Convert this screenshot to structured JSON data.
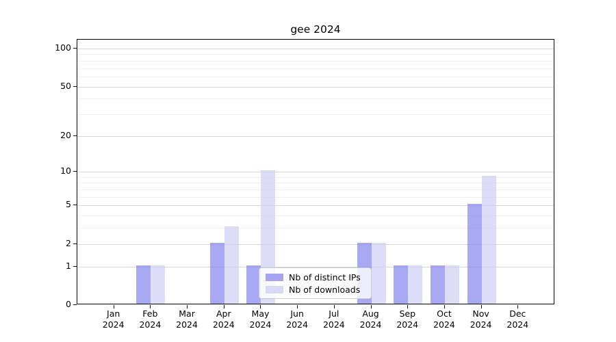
{
  "chart_data": {
    "type": "bar",
    "title": "gee 2024",
    "categories": [
      "Jan",
      "Feb",
      "Mar",
      "Apr",
      "May",
      "Jun",
      "Jul",
      "Aug",
      "Sep",
      "Oct",
      "Nov",
      "Dec"
    ],
    "x_tick_year": "2024",
    "series": [
      {
        "name": "Nb of distinct IPs",
        "values": [
          0,
          1,
          0,
          2,
          1,
          0,
          0,
          2,
          1,
          1,
          5,
          0
        ],
        "color": "#a5a5f0",
        "rgba": "rgba(131,131,238,0.7)"
      },
      {
        "name": "Nb of downloads",
        "values": [
          0,
          1,
          0,
          3,
          10,
          0,
          0,
          2,
          1,
          1,
          9,
          0
        ],
        "color": "#d9d9f6",
        "rgba": "rgba(206,206,245,0.7)"
      }
    ],
    "y_axis": {
      "scale": "log1p",
      "major_ticks": [
        0,
        1,
        2,
        5,
        10,
        20,
        50,
        100
      ],
      "minor_ticks": [
        3,
        4,
        6,
        7,
        8,
        9,
        30,
        40,
        60,
        70,
        80,
        90
      ]
    },
    "grid": "on",
    "legend": {
      "position": "lower-center-inside"
    },
    "colors": {
      "grid_major": "#d8d8d8",
      "grid_minor": "#efefef",
      "axis": "#000000",
      "text": "#000000",
      "background": "#ffffff"
    }
  }
}
